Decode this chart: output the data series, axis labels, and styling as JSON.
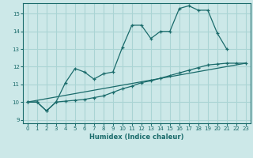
{
  "xlabel": "Humidex (Indice chaleur)",
  "bg_color": "#cce8e8",
  "line_color": "#1a6b6b",
  "grid_color": "#aad4d4",
  "xlim": [
    -0.5,
    23.5
  ],
  "ylim": [
    8.8,
    15.6
  ],
  "yticks": [
    9,
    10,
    11,
    12,
    13,
    14,
    15
  ],
  "xticks": [
    0,
    1,
    2,
    3,
    4,
    5,
    6,
    7,
    8,
    9,
    10,
    11,
    12,
    13,
    14,
    15,
    16,
    17,
    18,
    19,
    20,
    21,
    22,
    23
  ],
  "line1_x": [
    0,
    1,
    2,
    3,
    4,
    5,
    6,
    7,
    8,
    9,
    10,
    11,
    12,
    13,
    14,
    15,
    16,
    17,
    18,
    19,
    20,
    21
  ],
  "line1_y": [
    10.0,
    10.0,
    9.5,
    10.0,
    11.1,
    11.9,
    11.7,
    11.3,
    11.6,
    11.7,
    13.1,
    14.35,
    14.35,
    13.6,
    14.0,
    14.0,
    15.3,
    15.45,
    15.2,
    15.2,
    13.9,
    13.0
  ],
  "line2_x": [
    0,
    1,
    2,
    3,
    4,
    5,
    6,
    7,
    8,
    9,
    10,
    11,
    12,
    13,
    14,
    15,
    16,
    17,
    18,
    19,
    20,
    21,
    22,
    23
  ],
  "line2_y": [
    10.0,
    10.0,
    9.5,
    10.0,
    10.05,
    10.1,
    10.15,
    10.25,
    10.35,
    10.55,
    10.75,
    10.9,
    11.1,
    11.2,
    11.35,
    11.5,
    11.65,
    11.8,
    11.95,
    12.1,
    12.15,
    12.2,
    12.2,
    12.2
  ],
  "line3_x": [
    0,
    23
  ],
  "line3_y": [
    10.0,
    12.2
  ]
}
